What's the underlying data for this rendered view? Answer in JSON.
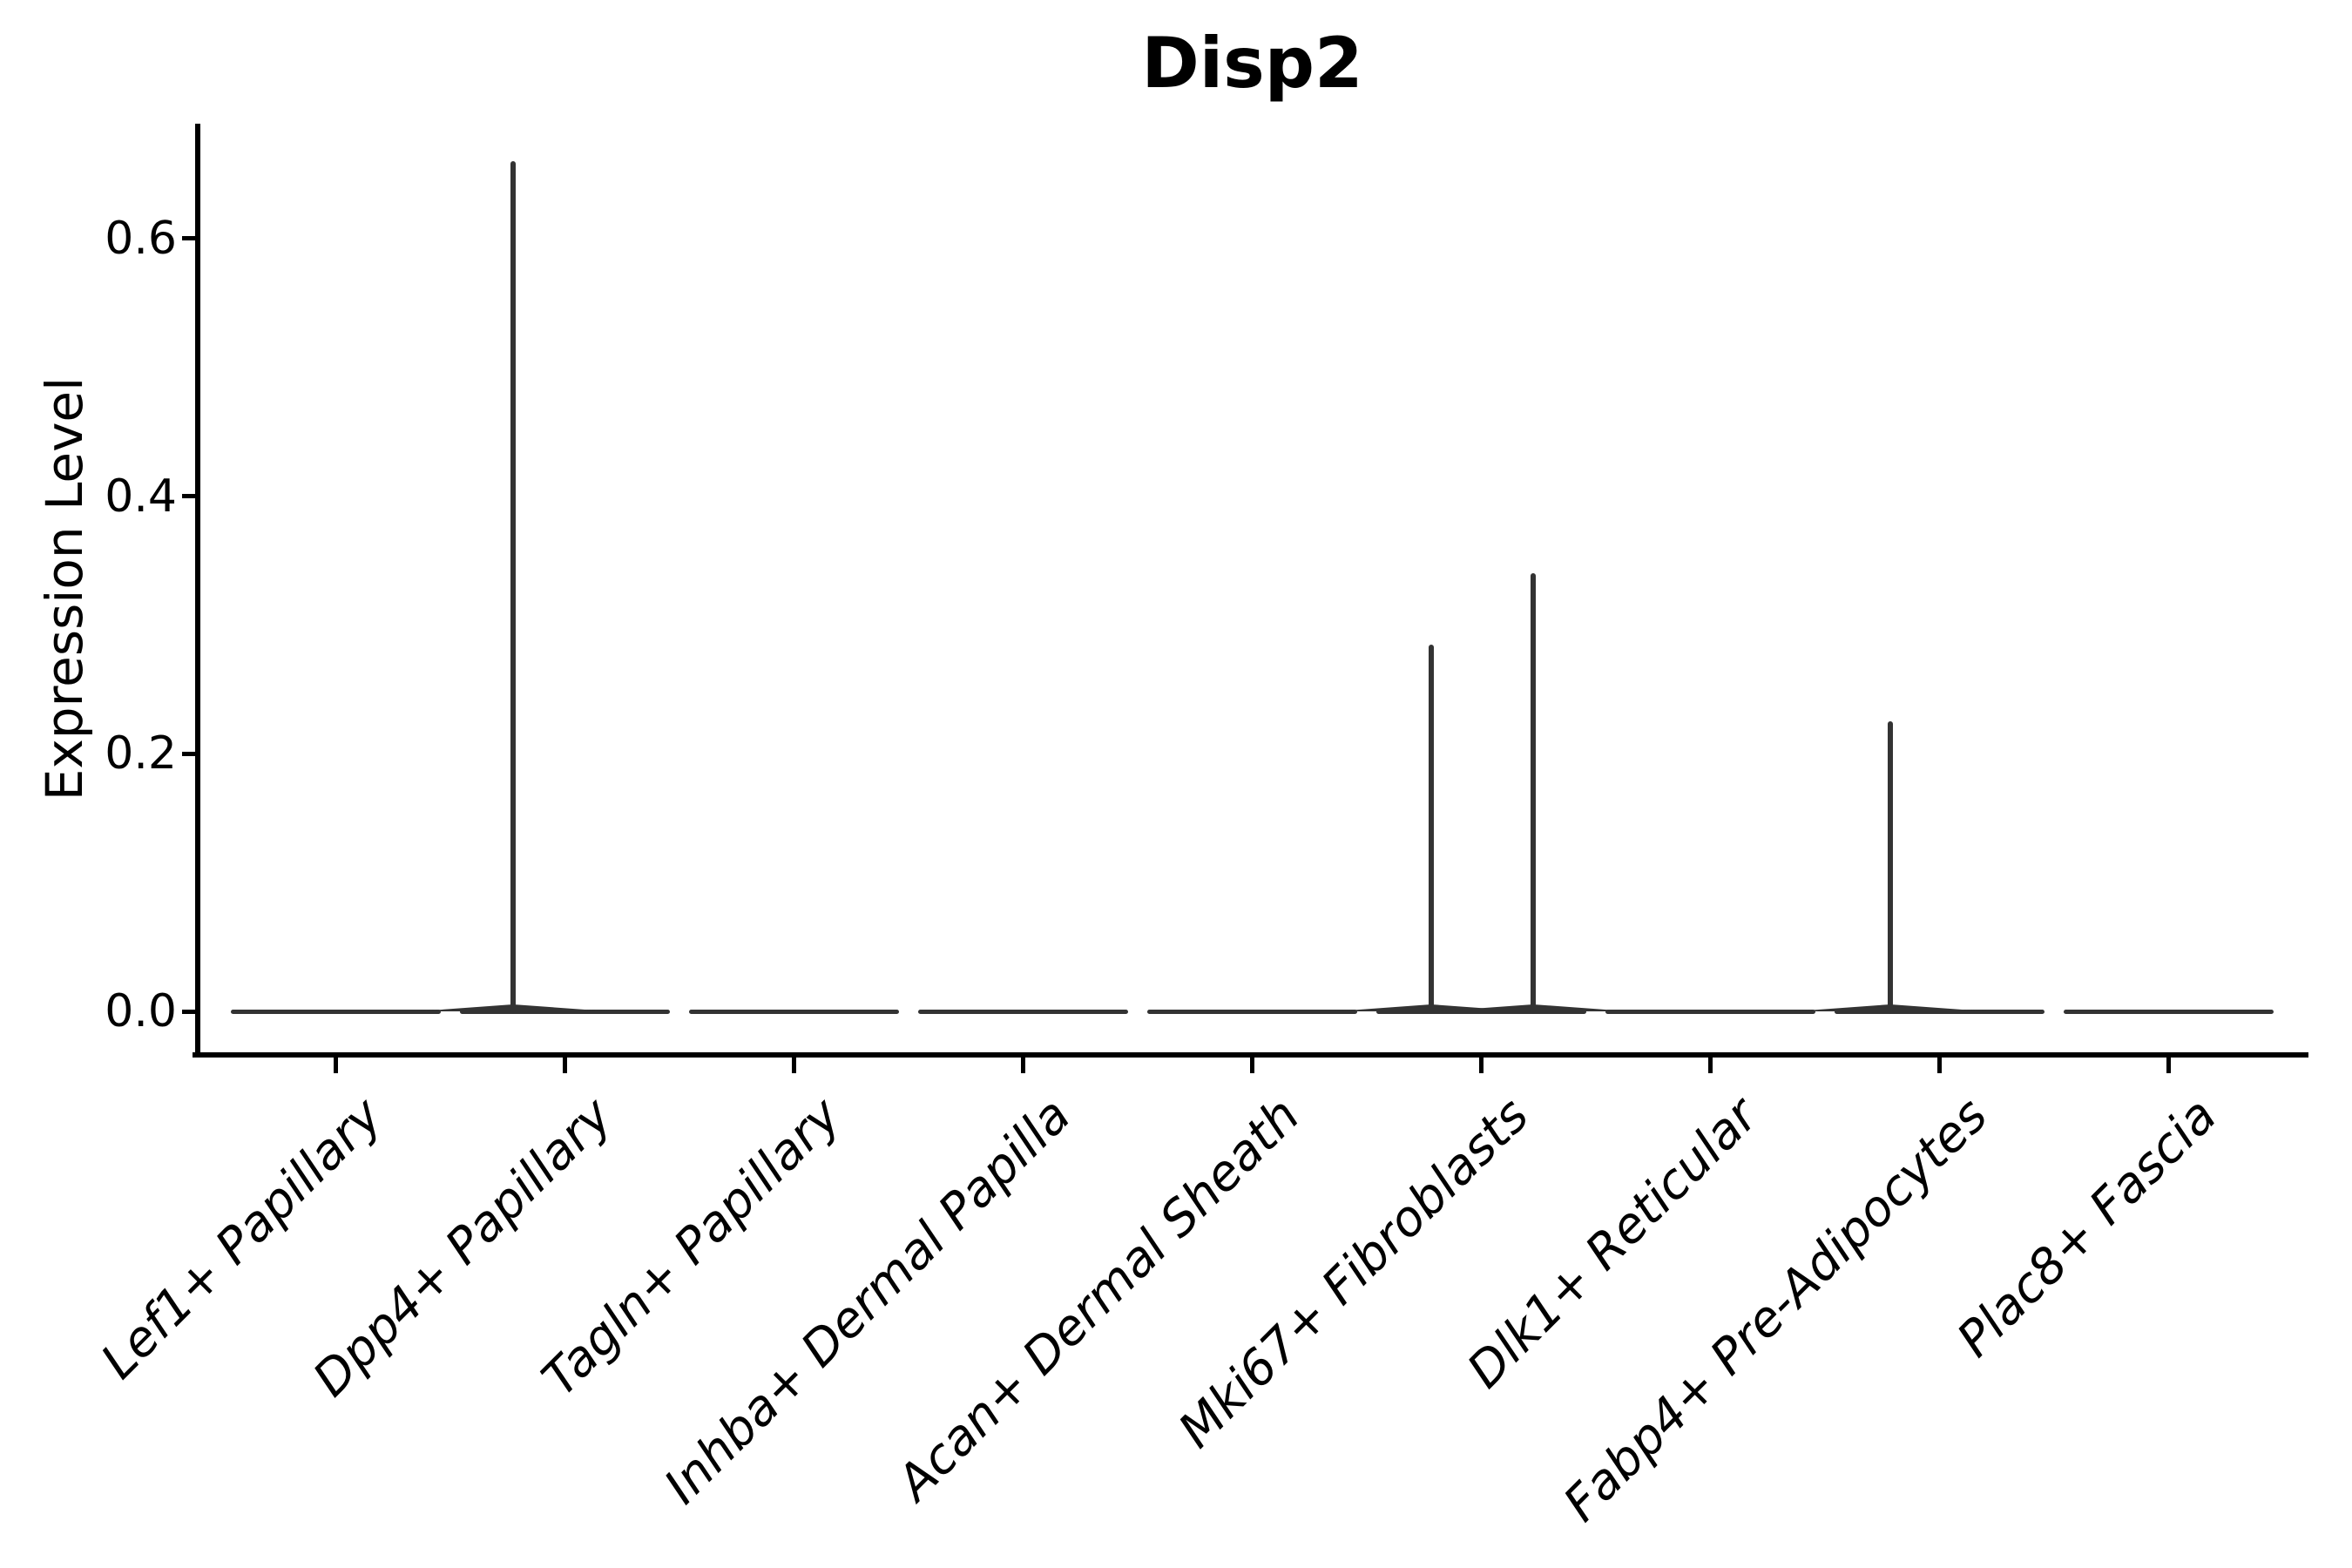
{
  "figure": {
    "background_color": "#ffffff",
    "axis_color": "#000000",
    "violin_color": "#333333"
  },
  "chart_data": {
    "type": "violin",
    "title": "Disp2",
    "ylabel": "Expression Level",
    "xlabel": "",
    "legend": "none",
    "grid": "off",
    "spines": [
      "left",
      "bottom"
    ],
    "ylim": [
      -0.033,
      0.689
    ],
    "ytick_values": [
      0.0,
      0.2,
      0.4,
      0.6
    ],
    "ytick_labels": [
      "0.0",
      "0.2",
      "0.4",
      "0.6"
    ],
    "x_label_style": "italic",
    "x_label_rotation_deg": 45,
    "categories": [
      "Lef1+ Papillary",
      "Dpp4+ Papillary",
      "Tagln+ Papillary",
      "Inhba+ Dermal Papilla",
      "Acan+ Dermal Sheath",
      "Mki67+ Fibroblasts",
      "Dlk1+ Reticular",
      "Fabp4+ Pre-Adipocytes",
      "Plac8+ Fascia"
    ],
    "violins": [
      {
        "category": "Lef1+ Papillary",
        "flat_at_zero": true,
        "spikes": []
      },
      {
        "category": "Dpp4+ Papillary",
        "flat_at_zero": true,
        "spikes": [
          {
            "value": 0.66,
            "offset_frac": -0.225
          }
        ]
      },
      {
        "category": "Tagln+ Papillary",
        "flat_at_zero": true,
        "spikes": []
      },
      {
        "category": "Inhba+ Dermal Papilla",
        "flat_at_zero": true,
        "spikes": []
      },
      {
        "category": "Acan+ Dermal Sheath",
        "flat_at_zero": true,
        "spikes": []
      },
      {
        "category": "Mki67+ Fibroblasts",
        "flat_at_zero": true,
        "spikes": [
          {
            "value": 0.285,
            "offset_frac": -0.22
          },
          {
            "value": 0.34,
            "offset_frac": 0.225
          }
        ]
      },
      {
        "category": "Dlk1+ Reticular",
        "flat_at_zero": true,
        "spikes": []
      },
      {
        "category": "Fabp4+ Pre-Adipocytes",
        "flat_at_zero": true,
        "spikes": [
          {
            "value": 0.225,
            "offset_frac": -0.215
          }
        ]
      },
      {
        "category": "Plac8+ Fascia",
        "flat_at_zero": true,
        "spikes": []
      }
    ]
  }
}
